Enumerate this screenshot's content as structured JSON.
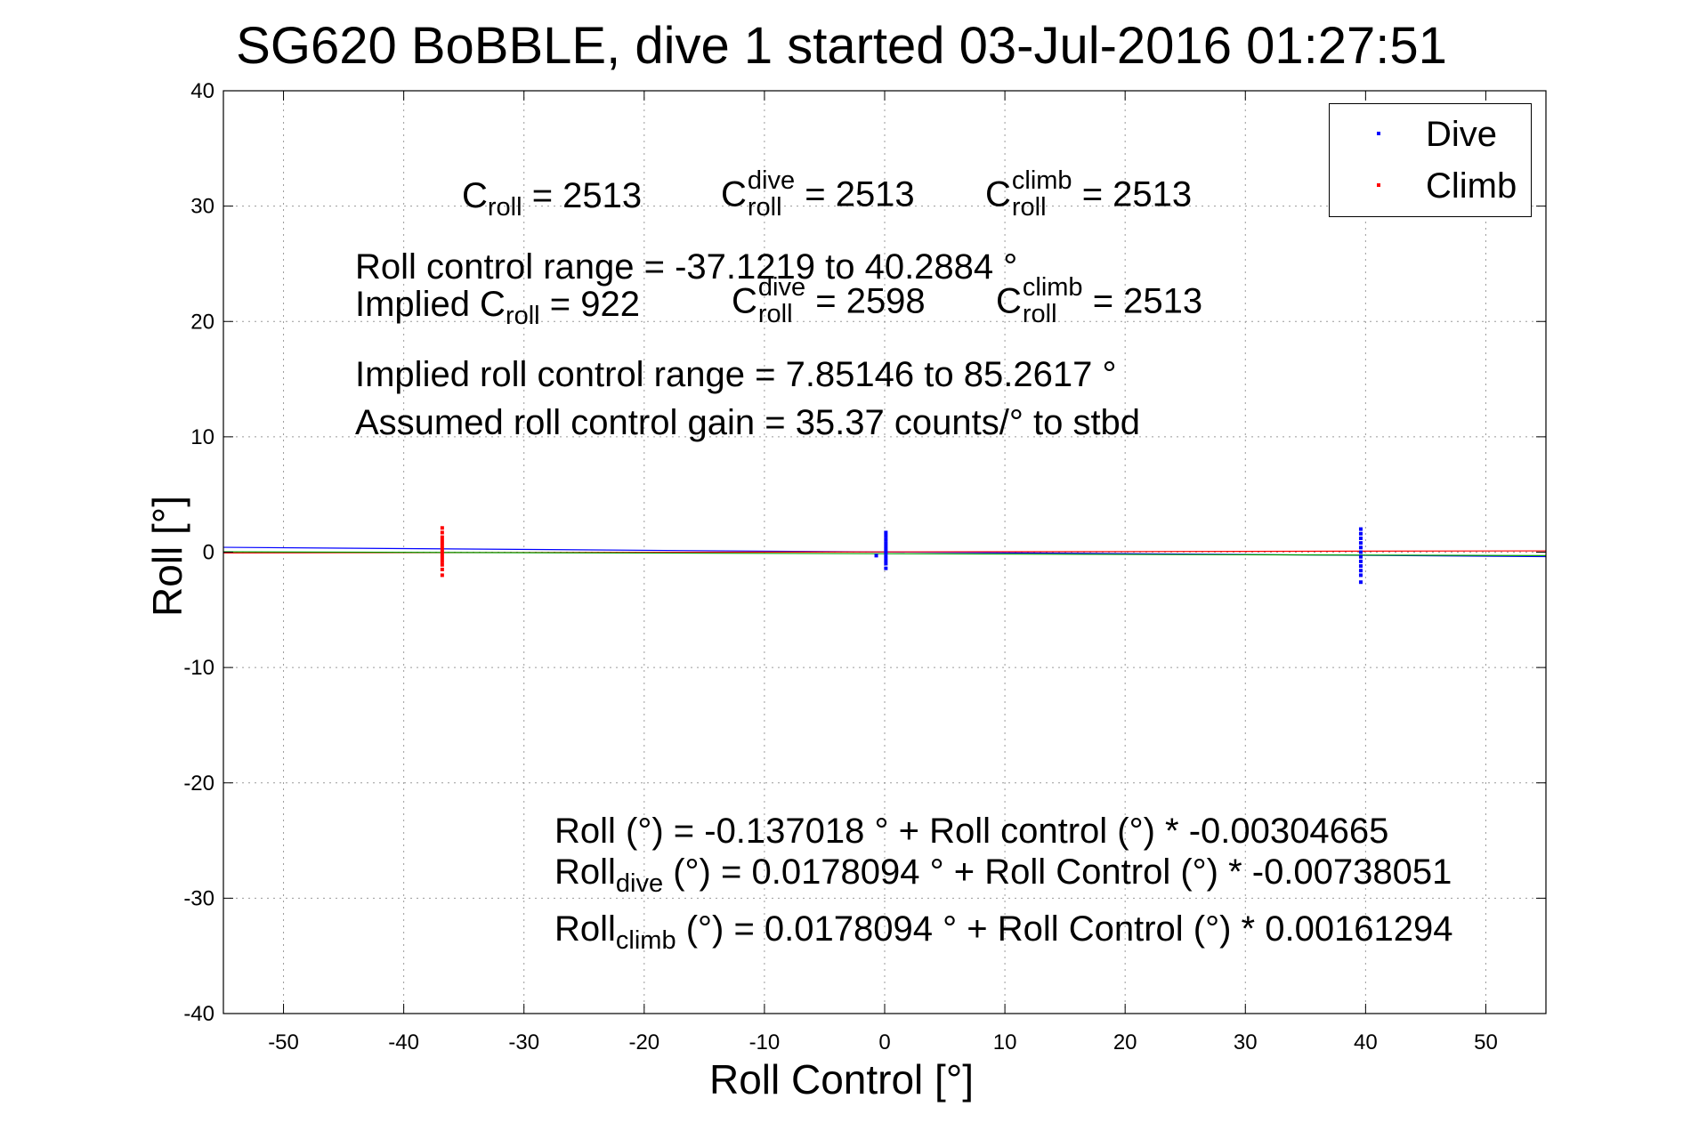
{
  "chart_data": {
    "type": "scatter",
    "title": "SG620 BoBBLE, dive 1 started 03-Jul-2016 01:27:51",
    "xlabel": "Roll Control [°]",
    "ylabel": "Roll [°]",
    "xlim": [
      -55,
      55
    ],
    "ylim": [
      -40,
      40
    ],
    "xticks": [
      -50,
      -40,
      -30,
      -20,
      -10,
      0,
      10,
      20,
      30,
      40,
      50
    ],
    "yticks": [
      -40,
      -30,
      -20,
      -10,
      0,
      10,
      20,
      30,
      40
    ],
    "xtick_labels": [
      "-50",
      "-40",
      "-30",
      "-20",
      "-10",
      "0",
      "10",
      "20",
      "30",
      "40",
      "50"
    ],
    "ytick_labels": [
      "-40",
      "-30",
      "-20",
      "-10",
      "0",
      "10",
      "20",
      "30",
      "40"
    ],
    "grid": true,
    "legend_position": "top-right",
    "series": [
      {
        "name": "Dive",
        "color": "#0000ff",
        "points": [
          [
            0.1,
            1.7
          ],
          [
            0.1,
            1.4
          ],
          [
            0.1,
            1.1
          ],
          [
            0.1,
            0.8
          ],
          [
            0.1,
            0.5
          ],
          [
            0.1,
            0.2
          ],
          [
            0.1,
            -0.1
          ],
          [
            0.1,
            -0.4
          ],
          [
            0.1,
            -0.7
          ],
          [
            0.1,
            -1.0
          ],
          [
            0.1,
            -1.4
          ],
          [
            -0.7,
            -0.3
          ],
          [
            39.6,
            2.0
          ],
          [
            39.6,
            1.6
          ],
          [
            39.6,
            1.2
          ],
          [
            39.6,
            0.8
          ],
          [
            39.6,
            0.4
          ],
          [
            39.6,
            0.0
          ],
          [
            39.6,
            -0.4
          ],
          [
            39.6,
            -0.8
          ],
          [
            39.6,
            -1.2
          ],
          [
            39.6,
            -1.6
          ],
          [
            39.6,
            -2.0
          ],
          [
            39.6,
            -2.6
          ]
        ]
      },
      {
        "name": "Climb",
        "color": "#ff0000",
        "points": [
          [
            -36.8,
            2.1
          ],
          [
            -36.8,
            1.7
          ],
          [
            -36.8,
            1.3
          ],
          [
            -36.8,
            1.0
          ],
          [
            -36.8,
            0.7
          ],
          [
            -36.8,
            0.4
          ],
          [
            -36.8,
            0.1
          ],
          [
            -36.8,
            -0.2
          ],
          [
            -36.8,
            -0.5
          ],
          [
            -36.8,
            -0.8
          ],
          [
            -36.8,
            -1.1
          ],
          [
            -36.8,
            -1.5
          ],
          [
            -36.8,
            -2.0
          ]
        ]
      }
    ],
    "fit_lines": [
      {
        "color": "#0000ff",
        "x": [
          -55,
          55
        ],
        "y": [
          0.42,
          -0.39
        ]
      },
      {
        "color": "#ff0000",
        "x": [
          -55,
          55
        ],
        "y": [
          -0.07,
          0.11
        ]
      },
      {
        "color": "#00a000",
        "x": [
          -55,
          55
        ],
        "y": [
          0.03,
          -0.3
        ]
      }
    ],
    "legend": {
      "dive_label": "Dive",
      "climb_label": "Climb"
    },
    "annotations": {
      "c_roll_line": {
        "c": "C",
        "roll_sub": "roll",
        "val1": "= 2513",
        "dive_sup": "dive",
        "val2": "= 2513",
        "climb_sup": "climb",
        "val3": "= 2513"
      },
      "roll_range": "Roll control range = -37.1219 to 40.2884 °",
      "implied_line": {
        "prefix": "Implied C",
        "roll_sub": "roll",
        "val1": "=  922",
        "c": "C",
        "dive_sup": "dive",
        "val2": "= 2598",
        "climb_sup": "climb",
        "val3": "= 2513"
      },
      "implied_range": "Implied roll control range = 7.85146 to 85.2617 °",
      "gain": "Assumed roll control gain = 35.37 counts/° to stbd",
      "eq1": "Roll (°) = -0.137018 ° + Roll control (°) * -0.00304665",
      "eq2": {
        "roll": "Roll",
        "sub": "dive",
        "rest": "(°) = 0.0178094 ° + Roll Control (°) * -0.00738051"
      },
      "eq3": {
        "roll": "Roll",
        "sub": "climb",
        "rest": "(°) = 0.0178094 ° + Roll Control (°) * 0.00161294"
      }
    }
  }
}
